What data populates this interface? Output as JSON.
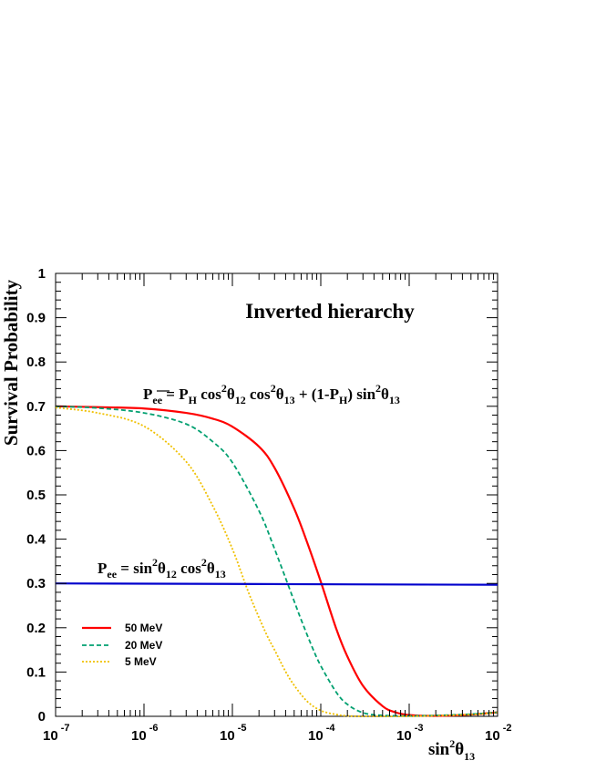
{
  "chart_data": {
    "type": "line",
    "title": "Inverted hierarchy",
    "xlabel": {
      "base": "sin",
      "sup": "2",
      "sym": "θ",
      "sub": "13"
    },
    "ylabel": "Survival Probability",
    "x_scale": "log",
    "xlim": [
      1e-07,
      0.01
    ],
    "ylim": [
      0,
      1
    ],
    "grid": false,
    "legend_position": "lower-left",
    "x_ticks": [
      {
        "value": 1e-07,
        "base": "10",
        "exp": "-7"
      },
      {
        "value": 1e-06,
        "base": "10",
        "exp": "-6"
      },
      {
        "value": 1e-05,
        "base": "10",
        "exp": "-5"
      },
      {
        "value": 0.0001,
        "base": "10",
        "exp": "-4"
      },
      {
        "value": 0.001,
        "base": "10",
        "exp": "-3"
      },
      {
        "value": 0.01,
        "base": "10",
        "exp": "-2"
      }
    ],
    "y_ticks": [
      "0",
      "0.1",
      "0.2",
      "0.3",
      "0.4",
      "0.5",
      "0.6",
      "0.7",
      "0.8",
      "0.9",
      "1"
    ],
    "annotations": {
      "formula_top": "P_ee̅ = P_H cos²θ12 cos²θ13 + (1-P_H) sin²θ13",
      "formula_bottom": "P_ee = sin²θ12 cos²θ13"
    },
    "series": [
      {
        "name": "50 MeV",
        "color": "#ff0000",
        "dash": "solid",
        "x": [
          1e-07,
          3e-07,
          1e-06,
          3e-06,
          6e-06,
          1e-05,
          2e-05,
          3e-05,
          5e-05,
          7e-05,
          0.0001,
          0.00015,
          0.0002,
          0.0003,
          0.0005,
          0.0007,
          0.001,
          0.002,
          0.005,
          0.01
        ],
        "y": [
          0.7,
          0.698,
          0.695,
          0.685,
          0.672,
          0.654,
          0.609,
          0.561,
          0.469,
          0.393,
          0.304,
          0.197,
          0.135,
          0.069,
          0.023,
          0.009,
          0.003,
          0.001,
          0.004,
          0.009
        ]
      },
      {
        "name": "20 MeV",
        "color": "#00a070",
        "dash": "dashed",
        "x": [
          1e-07,
          3e-07,
          1e-06,
          3e-06,
          6e-06,
          1e-05,
          2e-05,
          3e-05,
          5e-05,
          6e-05,
          8e-05,
          0.0001,
          0.00015,
          0.0002,
          0.0003,
          0.0005,
          0.001,
          0.002,
          0.005,
          0.01
        ],
        "y": [
          0.7,
          0.696,
          0.685,
          0.66,
          0.62,
          0.573,
          0.464,
          0.378,
          0.26,
          0.218,
          0.156,
          0.114,
          0.054,
          0.027,
          0.008,
          0.002,
          0.001,
          0.002,
          0.005,
          0.009
        ]
      },
      {
        "name": "5 MeV",
        "color": "#f0c000",
        "dash": "dotted",
        "x": [
          1e-07,
          3e-07,
          1e-06,
          3e-06,
          6e-06,
          1e-05,
          1.5e-05,
          2e-05,
          2.5e-05,
          3e-05,
          4e-05,
          5e-05,
          7e-05,
          0.0001,
          0.00015,
          0.0002,
          0.0003,
          0.001,
          0.005,
          0.01
        ],
        "y": [
          0.697,
          0.685,
          0.655,
          0.575,
          0.475,
          0.378,
          0.283,
          0.223,
          0.18,
          0.15,
          0.101,
          0.07,
          0.034,
          0.013,
          0.004,
          0.001,
          0.0,
          0.0,
          0.004,
          0.009
        ]
      },
      {
        "name": "",
        "color": "#0000cc",
        "dash": "solid",
        "role": "horizontal P_ee line",
        "x": [
          1e-07,
          0.01
        ],
        "y": [
          0.3,
          0.297
        ]
      }
    ]
  }
}
